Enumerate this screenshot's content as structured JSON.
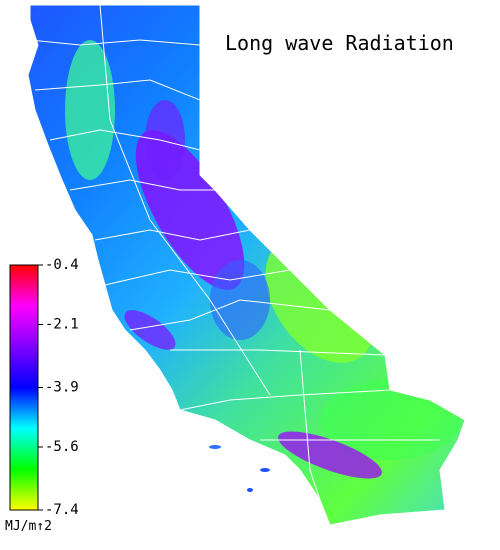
{
  "map": {
    "title": "Long wave Radiation",
    "colorbar": {
      "range": [
        -7.4,
        -0.4
      ],
      "ticks": [
        -0.4,
        -2.1,
        -3.9,
        -5.6,
        -7.4
      ],
      "unit": "MJ/m↑2",
      "colors": [
        "#ff0000",
        "#ff00ff",
        "#8000ff",
        "#0000ff",
        "#00ffff",
        "#00ff00",
        "#ffff00"
      ]
    }
  }
}
